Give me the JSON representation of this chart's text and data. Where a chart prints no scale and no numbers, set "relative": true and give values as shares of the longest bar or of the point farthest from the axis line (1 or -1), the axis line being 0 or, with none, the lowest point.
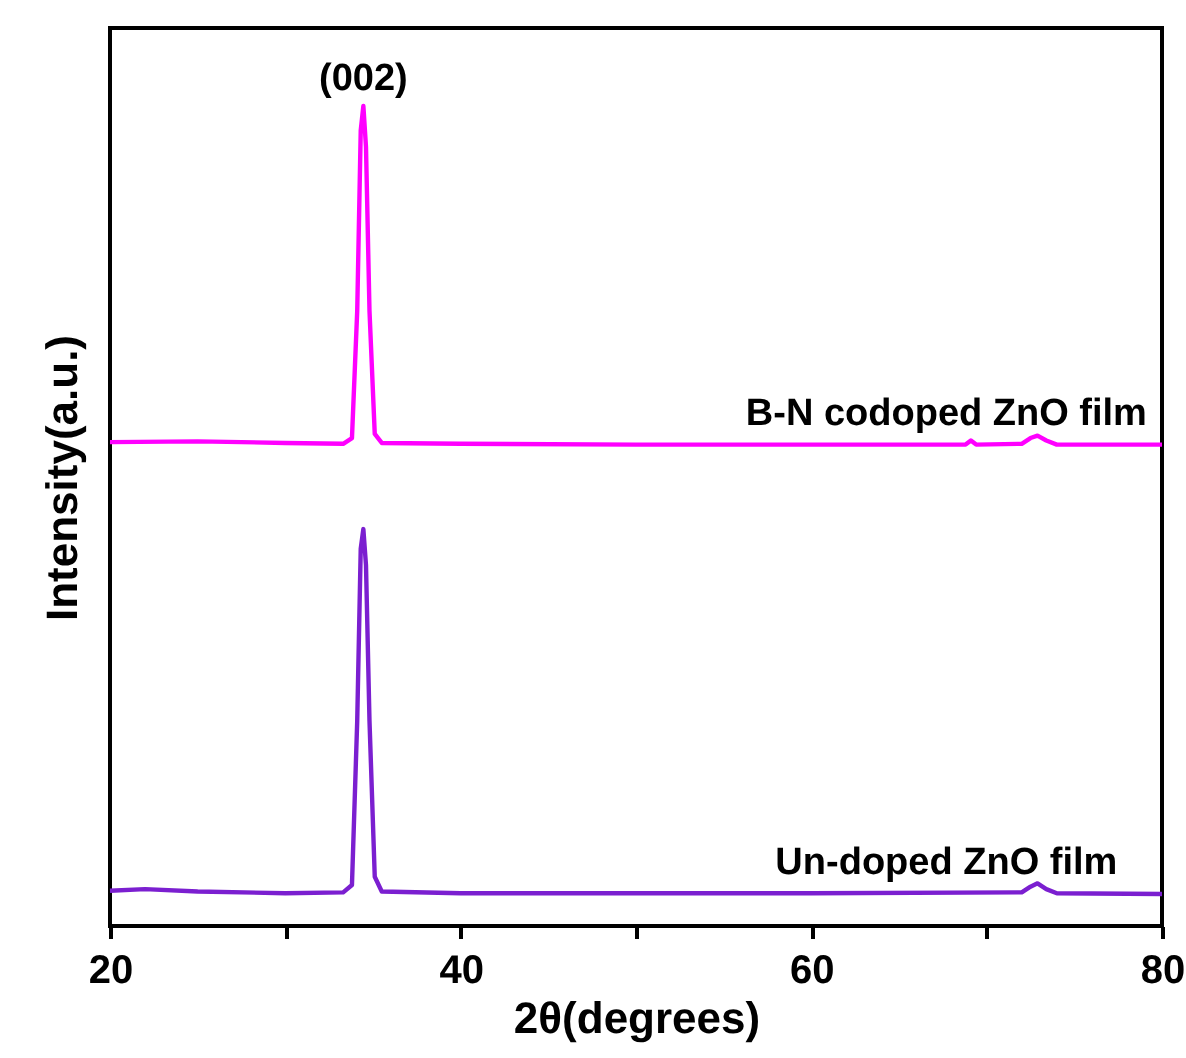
{
  "chart_data": {
    "type": "line",
    "xlabel": "2θ(degrees)",
    "ylabel": "Intensity(a.u.)",
    "relative": true,
    "xlim": [
      20,
      80
    ],
    "xticks": [
      20,
      {
        "value": 30,
        "label": null
      },
      40,
      {
        "value": 50,
        "label": null
      },
      60,
      {
        "value": 70,
        "label": null
      },
      80
    ],
    "tick_labels": "x",
    "annotations": [
      {
        "text": "(002)",
        "x": 34.45,
        "y": 1.0
      }
    ],
    "series": [
      {
        "name": "B-N codoped  ZnO  film",
        "color": "#ff00ff",
        "x": [
          20,
          25,
          30,
          33.3,
          33.8,
          34.1,
          34.3,
          34.45,
          34.6,
          34.8,
          35.1,
          35.5,
          40,
          50,
          60,
          68.8,
          69.1,
          69.4,
          72,
          72.5,
          72.9,
          73.4,
          74,
          80
        ],
        "values": [
          0.59,
          0.591,
          0.589,
          0.588,
          0.595,
          0.75,
          0.97,
          1.0,
          0.95,
          0.75,
          0.6,
          0.589,
          0.588,
          0.587,
          0.587,
          0.587,
          0.592,
          0.587,
          0.588,
          0.595,
          0.598,
          0.592,
          0.587,
          0.587
        ]
      },
      {
        "name": "Un-doped  ZnO  film",
        "color": "#7b1fd0",
        "x": [
          20,
          22,
          25,
          30,
          33.3,
          33.8,
          34.1,
          34.3,
          34.45,
          34.6,
          34.8,
          35.1,
          35.5,
          40,
          60,
          72,
          72.5,
          72.9,
          73.4,
          74,
          80
        ],
        "values": [
          0.043,
          0.045,
          0.042,
          0.04,
          0.041,
          0.05,
          0.25,
          0.46,
          0.484,
          0.44,
          0.25,
          0.06,
          0.042,
          0.04,
          0.04,
          0.041,
          0.048,
          0.052,
          0.045,
          0.04,
          0.039
        ]
      }
    ]
  }
}
